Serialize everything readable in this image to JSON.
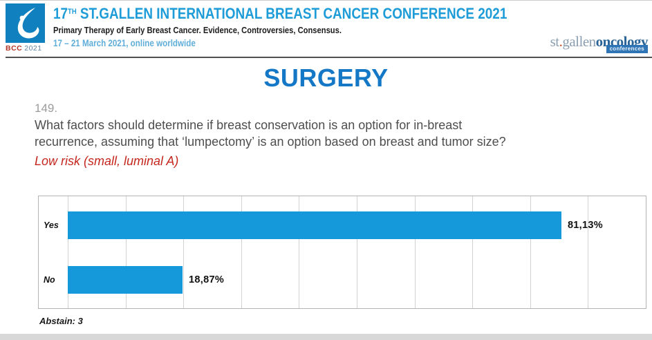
{
  "header": {
    "logo": {
      "acronym": "BCC",
      "year": "2021"
    },
    "title": {
      "number": "17",
      "ordinal": "TH",
      "rest": " ST.GALLEN INTERNATIONAL BREAST CANCER CONFERENCE 2021"
    },
    "subtitle": "Primary Therapy of Early Breast Cancer. Evidence, Controversies, Consensus.",
    "dates": "17 – 21 March 2021, online worldwide",
    "brand": {
      "prefix": "st",
      "dot": ".",
      "location": "gallen",
      "suffix": "oncology",
      "badge": "conferences"
    }
  },
  "section_title": "SURGERY",
  "question": {
    "number": "149.",
    "line1": "What factors should determine if breast conservation is an option for in-breast",
    "line2": "recurrence, assuming that ‘lumpectomy’ is an option based on breast and tumor size?",
    "highlight": "Low risk (small, luminal A)"
  },
  "chart_data": {
    "type": "bar",
    "orientation": "horizontal",
    "title": "",
    "categories": [
      "Yes",
      "No"
    ],
    "values": [
      81.13,
      18.87
    ],
    "value_labels": [
      "81,13%",
      "18,87%"
    ],
    "abstain": "Abstain: 3",
    "axis_max": 95,
    "gridline_count": 10,
    "grid": true,
    "legend": false,
    "bar_color": "#1699db"
  },
  "colors": {
    "title_blue": "#1e9cd8",
    "section_blue": "#1478c6",
    "dates_blue": "#5fadd9",
    "logo_blue": "#1080bf",
    "highlight_red": "#c5271e",
    "bar_blue": "#1699db",
    "badge_blue": "#2f74b5"
  }
}
